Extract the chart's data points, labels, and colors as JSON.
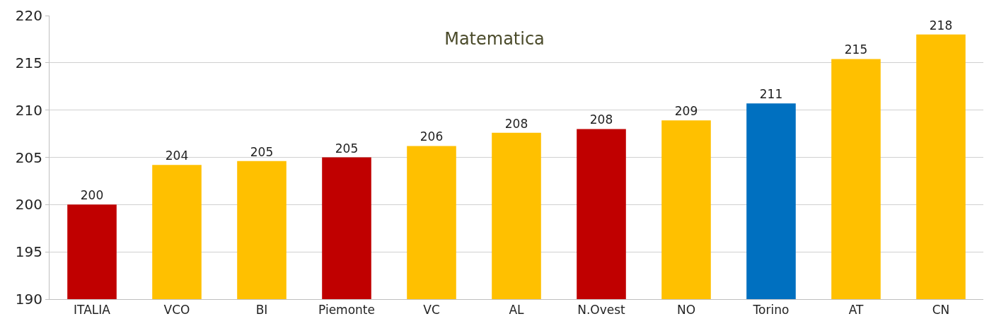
{
  "chart_data": {
    "type": "bar",
    "title": "Matematica",
    "categories": [
      "ITALIA",
      "VCO",
      "BI",
      "Piemonte",
      "VC",
      "AL",
      "N.Ovest",
      "NO",
      "Torino",
      "AT",
      "CN"
    ],
    "values": [
      200.0,
      204.2,
      204.6,
      205.0,
      206.2,
      207.6,
      208.0,
      208.9,
      210.7,
      215.4,
      218.0
    ],
    "value_labels": [
      "200",
      "204",
      "205",
      "205",
      "206",
      "208",
      "208",
      "209",
      "211",
      "215",
      "218"
    ],
    "colors": [
      "#c00000",
      "#ffc000",
      "#ffc000",
      "#c00000",
      "#ffc000",
      "#ffc000",
      "#c00000",
      "#ffc000",
      "#0070c0",
      "#ffc000",
      "#ffc000"
    ],
    "ylim": [
      190,
      220
    ],
    "yticks": [
      190,
      195,
      200,
      205,
      210,
      215,
      220
    ],
    "grid": "y"
  }
}
